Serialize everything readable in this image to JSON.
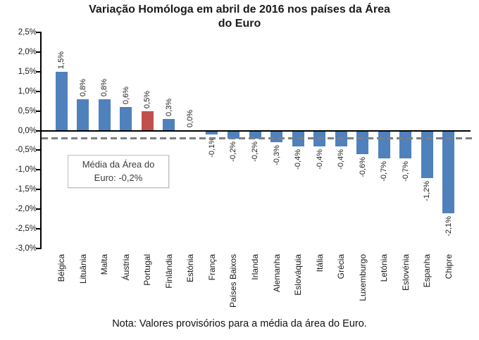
{
  "header": {
    "title_lines": [
      "Variação Homóloga em abril de 2016 nos países da Área",
      "do Euro"
    ]
  },
  "chart_data": {
    "type": "bar",
    "title": "Variação Homóloga em abril de 2016 nos países da Área do Euro",
    "categories": [
      "Bélgica",
      "Lituânia",
      "Malta",
      "Áustria",
      "Portugal",
      "Finlândia",
      "Estónia",
      "França",
      "Países Baixos",
      "Irlanda",
      "Alemanha",
      "Eslováquia",
      "Itália",
      "Grécia",
      "Luxemburgo",
      "Letónia",
      "Eslovénia",
      "Espanha",
      "Chipre"
    ],
    "values": [
      1.5,
      0.8,
      0.8,
      0.6,
      0.5,
      0.3,
      0.0,
      -0.1,
      -0.2,
      -0.2,
      -0.3,
      -0.4,
      -0.4,
      -0.4,
      -0.6,
      -0.7,
      -0.7,
      -1.2,
      -2.1
    ],
    "value_labels": [
      "1,5%",
      "0,8%",
      "0,8%",
      "0,6%",
      "0,5%",
      "0,3%",
      "0,0%",
      "-0,1%",
      "-0,2%",
      "-0,2%",
      "-0,3%",
      "-0,4%",
      "-0,4%",
      "-0,4%",
      "-0,6%",
      "-0,7%",
      "-0,7%",
      "-1,2%",
      "-2,1%"
    ],
    "highlight_category": "Portugal",
    "highlight_index": 4,
    "colors": {
      "bar": "#4F81BD",
      "highlight": "#C0504D",
      "axis": "#000000",
      "reference_line": "#7F7F7F"
    },
    "y_axis": {
      "min": -3.0,
      "max": 2.5,
      "step": 0.5,
      "tick_labels": [
        "2,5%",
        "2,0%",
        "1,5%",
        "1,0%",
        "0,5%",
        "0,0%",
        "-0,5%",
        "-1,0%",
        "-1,5%",
        "-2,0%",
        "-2,5%",
        "-3,0%"
      ]
    },
    "reference_line": {
      "value": -0.2,
      "style": "dashed"
    },
    "annotation": {
      "lines": [
        "Média da Área do",
        "Euro: -0,2%"
      ]
    },
    "grid": "off",
    "legend": "none",
    "note": "Nota: Valores provisórios para a média da área do Euro."
  }
}
